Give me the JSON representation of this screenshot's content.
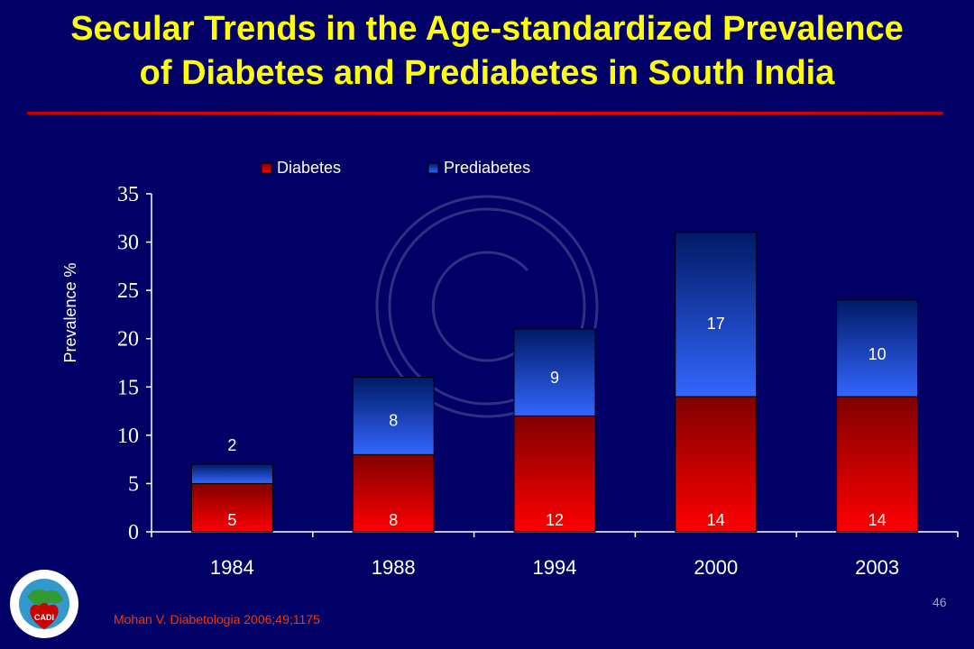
{
  "slide": {
    "title_line1": "Secular Trends in the Age-standardized Prevalence",
    "title_line2": "of Diabetes and Prediabetes in South India",
    "citation": "Mohan V. Diabetologia 2006;49;1175",
    "page_number": "46",
    "logo_text": "CADI",
    "colors": {
      "background": "#000066",
      "title": "#ffff00",
      "rule": "#ff0000",
      "citation": "#ff3300"
    }
  },
  "chart_data": {
    "type": "bar",
    "stacked": true,
    "categories": [
      "1984",
      "1988",
      "1994",
      "2000",
      "2003"
    ],
    "series": [
      {
        "name": "Diabetes",
        "values": [
          5,
          8,
          12,
          14,
          14
        ],
        "color": "#e00000"
      },
      {
        "name": "Prediabetes",
        "values": [
          2,
          8,
          9,
          17,
          10
        ],
        "color": "#3366ff"
      }
    ],
    "ylabel": "Prevalence %",
    "ylim": [
      0,
      35
    ],
    "yticks": [
      0,
      5,
      10,
      15,
      20,
      25,
      30,
      35
    ],
    "legend_position": "top",
    "grid": false,
    "data_labels": true,
    "watermark": "copyright-icon"
  }
}
